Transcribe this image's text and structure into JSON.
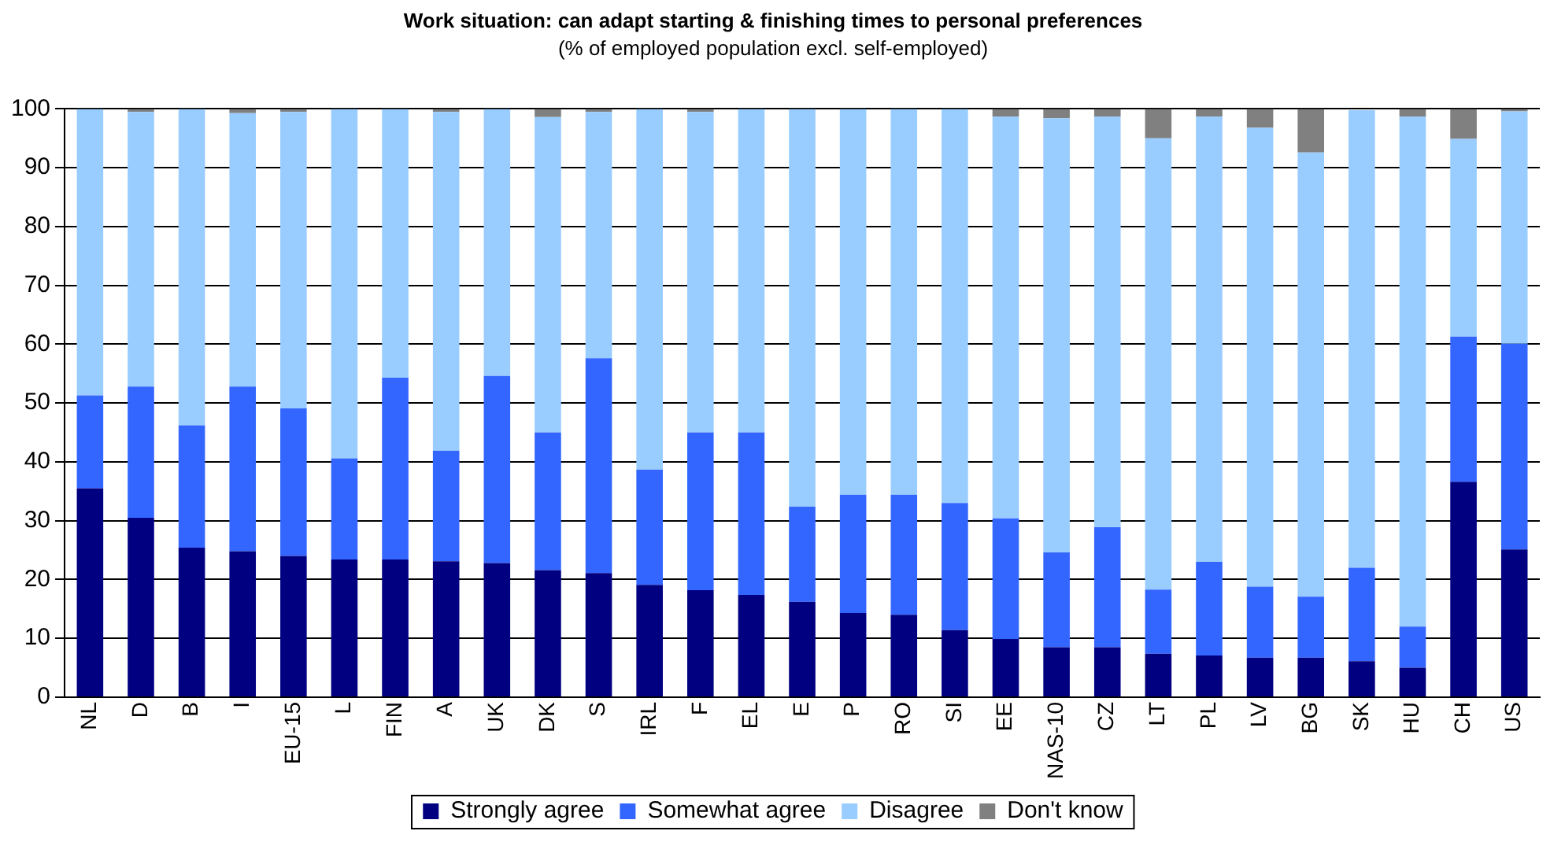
{
  "chart_data": {
    "type": "bar",
    "title": "Work situation: can adapt starting & finishing times to personal preferences",
    "subtitle": "(% of employed population excl. self-employed)",
    "categories": [
      "NL",
      "D",
      "B",
      "I",
      "EU-15",
      "L",
      "FIN",
      "A",
      "UK",
      "DK",
      "S",
      "IRL",
      "F",
      "EL",
      "E",
      "P",
      "RO",
      "SI",
      "EE",
      "NAS-10",
      "CZ",
      "LT",
      "PL",
      "LV",
      "BG",
      "SK",
      "HU",
      "CH",
      "US"
    ],
    "stacked": true,
    "ylim": [
      0,
      100
    ],
    "yticks": [
      0,
      10,
      20,
      30,
      40,
      50,
      60,
      70,
      80,
      90,
      100
    ],
    "grid": "y",
    "legend": "bottom",
    "series": [
      {
        "name": "Strongly agree",
        "color": "#000080",
        "values": [
          35.5,
          30.5,
          25.4,
          24.8,
          24,
          23.4,
          23.4,
          23.1,
          22.8,
          21.6,
          21.1,
          19.1,
          18.2,
          17.4,
          16.2,
          14.3,
          14,
          11.4,
          9.9,
          8.5,
          8.5,
          7.4,
          7.1,
          6.7,
          6.7,
          6.1,
          5,
          36.6,
          25.1
        ]
      },
      {
        "name": "Somewhat agree",
        "color": "#3366ff",
        "values": [
          15.8,
          22.3,
          20.8,
          28,
          25.1,
          17.2,
          30.9,
          18.8,
          31.8,
          23.4,
          36.5,
          19.6,
          26.8,
          27.6,
          16.2,
          20.1,
          20.4,
          21.6,
          20.5,
          16.1,
          20.4,
          10.9,
          15.9,
          12.1,
          10.4,
          15.9,
          7,
          24.7,
          35
        ]
      },
      {
        "name": "Disagree",
        "color": "#99ccff",
        "values": [
          48.7,
          46.7,
          53.8,
          46.5,
          50.4,
          59.4,
          45.7,
          57.6,
          45.4,
          53.6,
          41.9,
          61.3,
          54.5,
          55,
          67.6,
          65.6,
          65.6,
          67,
          68.3,
          73.8,
          69.8,
          76.7,
          75.7,
          78,
          75.5,
          77.8,
          86.7,
          33.6,
          39.5
        ]
      },
      {
        "name": "Don't know",
        "color": "#808080",
        "values": [
          0,
          0.5,
          0,
          0.7,
          0.5,
          0,
          0,
          0.5,
          0,
          1.4,
          0.5,
          0,
          0.5,
          0,
          0,
          0,
          0,
          0,
          1.3,
          1.6,
          1.3,
          5,
          1.3,
          3.2,
          7.4,
          0,
          1.3,
          5.1,
          0.4
        ]
      }
    ]
  }
}
